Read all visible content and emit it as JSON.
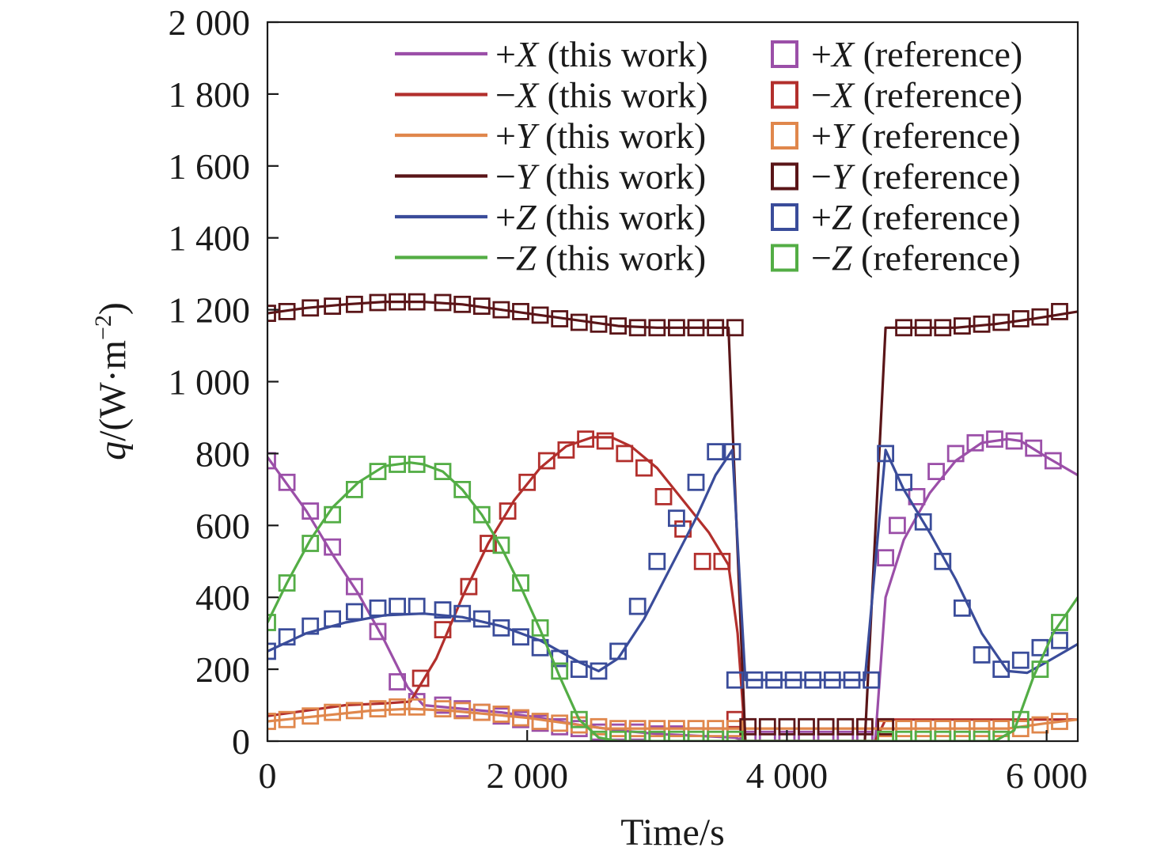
{
  "chart_data": {
    "type": "line",
    "xlabel": "Time/s",
    "ylabel_main": "q",
    "ylabel_unit": "/(W·m",
    "ylabel_exp": "−2",
    "ylabel_close": ")",
    "xlim": [
      0,
      6240
    ],
    "ylim": [
      0,
      2000
    ],
    "grid": false,
    "legend_position": "top-right",
    "x_ticks": [
      0,
      2000,
      4000,
      6000
    ],
    "x_tick_labels": [
      "0",
      "2 000",
      "4 000",
      "6 000"
    ],
    "y_ticks": [
      0,
      200,
      400,
      600,
      800,
      1000,
      1200,
      1400,
      1600,
      1800,
      2000
    ],
    "y_tick_labels": [
      "0",
      "200",
      "400",
      "600",
      "800",
      "1 000",
      "1 200",
      "1 400",
      "1 600",
      "1 800",
      "2 000"
    ],
    "series": [
      {
        "key": "px",
        "name_line": "+X (this work)",
        "name_ref": "+X (reference)",
        "color": "#9b4fa8",
        "line_x": [
          0,
          300,
          500,
          700,
          900,
          1080,
          1200,
          1500,
          1800,
          2100,
          2400,
          2700,
          3000,
          3300,
          3600,
          3680,
          4000,
          4600,
          4680,
          4760,
          4900,
          5100,
          5300,
          5500,
          5700,
          5800,
          6000,
          6240
        ],
        "line_y": [
          790,
          640,
          520,
          410,
          280,
          150,
          100,
          90,
          80,
          65,
          45,
          30,
          20,
          15,
          10,
          0,
          0,
          0,
          0,
          400,
          560,
          690,
          780,
          830,
          840,
          835,
          790,
          740
        ],
        "ref_x": [
          0,
          150,
          330,
          500,
          670,
          850,
          1000,
          1150,
          1350,
          1500,
          1650,
          1800,
          1950,
          2100,
          2250,
          2400,
          2550,
          2700,
          2850,
          3000,
          3150,
          3300,
          3450,
          3600,
          3700,
          3850,
          4000,
          4150,
          4300,
          4450,
          4600,
          4760,
          4850,
          5000,
          5150,
          5300,
          5450,
          5600,
          5750,
          5900,
          6050
        ],
        "ref_y": [
          780,
          720,
          640,
          540,
          430,
          305,
          165,
          110,
          100,
          90,
          80,
          70,
          60,
          50,
          40,
          35,
          25,
          25,
          25,
          20,
          20,
          15,
          15,
          15,
          5,
          5,
          5,
          5,
          5,
          5,
          5,
          510,
          600,
          680,
          750,
          800,
          830,
          840,
          835,
          815,
          780
        ]
      },
      {
        "key": "mx",
        "name_line": "−X (this work)",
        "name_ref": "−X (reference)",
        "color": "#b22f2c",
        "line_x": [
          0,
          300,
          600,
          900,
          1100,
          1300,
          1500,
          1700,
          1900,
          2100,
          2300,
          2500,
          2650,
          2800,
          3000,
          3200,
          3400,
          3550,
          3620,
          3680,
          4000,
          4600,
          4680,
          4760,
          5000,
          5500,
          6000,
          6240
        ],
        "line_y": [
          70,
          85,
          100,
          105,
          110,
          230,
          400,
          550,
          670,
          760,
          820,
          845,
          845,
          820,
          760,
          670,
          580,
          490,
          300,
          0,
          0,
          0,
          0,
          60,
          60,
          60,
          60,
          60
        ],
        "ref_x": [
          1180,
          1350,
          1550,
          1700,
          1850,
          2000,
          2150,
          2300,
          2450,
          2600,
          2750,
          2900,
          3050,
          3200,
          3350,
          3500,
          3600
        ],
        "ref_y": [
          175,
          310,
          430,
          550,
          640,
          720,
          780,
          810,
          840,
          835,
          800,
          760,
          680,
          590,
          500,
          500,
          60
        ]
      },
      {
        "key": "py",
        "name_line": "+Y (this work)",
        "name_ref": "+Y (reference)",
        "color": "#e0874c",
        "line_x": [
          0,
          400,
          800,
          1100,
          1400,
          1700,
          2000,
          2300,
          2600,
          3000,
          3500,
          3680,
          4000,
          4600,
          4760,
          5200,
          5700,
          6000,
          6240
        ],
        "line_y": [
          55,
          70,
          85,
          90,
          85,
          75,
          65,
          50,
          35,
          35,
          35,
          35,
          35,
          35,
          35,
          35,
          35,
          50,
          60
        ],
        "ref_x": [
          0,
          150,
          330,
          500,
          670,
          850,
          1000,
          1150,
          1350,
          1500,
          1650,
          1800,
          1950,
          2100,
          2250,
          2400,
          2550,
          2700,
          2850,
          3000,
          3150,
          3300,
          3450,
          3600,
          4760,
          4900,
          5050,
          5200,
          5350,
          5500,
          5650,
          5800,
          5950,
          6100
        ],
        "ref_y": [
          55,
          60,
          70,
          80,
          85,
          90,
          95,
          95,
          90,
          85,
          80,
          75,
          65,
          55,
          50,
          45,
          40,
          35,
          35,
          35,
          35,
          35,
          35,
          35,
          35,
          35,
          35,
          35,
          35,
          35,
          35,
          35,
          45,
          55
        ]
      },
      {
        "key": "my",
        "name_line": "−Y (this work)",
        "name_ref": "−Y (reference)",
        "color": "#5a1518",
        "line_x": [
          0,
          300,
          600,
          900,
          1200,
          1500,
          1800,
          2100,
          2400,
          2700,
          3000,
          3300,
          3550,
          3680,
          4000,
          4600,
          4760,
          5000,
          5300,
          5600,
          5900,
          6240
        ],
        "line_y": [
          1190,
          1205,
          1215,
          1222,
          1222,
          1215,
          1200,
          1185,
          1170,
          1155,
          1150,
          1150,
          1150,
          0,
          0,
          0,
          1150,
          1150,
          1150,
          1160,
          1175,
          1195
        ],
        "ref_x": [
          0,
          150,
          330,
          500,
          670,
          850,
          1000,
          1150,
          1350,
          1500,
          1650,
          1800,
          1950,
          2100,
          2250,
          2400,
          2550,
          2700,
          2850,
          3000,
          3150,
          3300,
          3450,
          3600,
          3700,
          3850,
          4000,
          4150,
          4300,
          4450,
          4600,
          4760,
          4900,
          5050,
          5200,
          5350,
          5500,
          5650,
          5800,
          5950,
          6100
        ],
        "ref_y": [
          1190,
          1195,
          1205,
          1210,
          1215,
          1220,
          1222,
          1222,
          1220,
          1215,
          1210,
          1200,
          1195,
          1185,
          1175,
          1165,
          1160,
          1155,
          1150,
          1150,
          1150,
          1150,
          1150,
          1150,
          40,
          40,
          40,
          40,
          40,
          40,
          40,
          40,
          1150,
          1150,
          1150,
          1155,
          1160,
          1165,
          1175,
          1180,
          1195
        ]
      },
      {
        "key": "pz",
        "name_line": "+Z (this work)",
        "name_ref": "+Z (reference)",
        "color": "#3a4c9a",
        "line_x": [
          0,
          300,
          600,
          900,
          1200,
          1500,
          1800,
          2100,
          2400,
          2550,
          2700,
          2900,
          3100,
          3300,
          3450,
          3580,
          3680,
          4000,
          4600,
          4760,
          4900,
          5100,
          5300,
          5500,
          5700,
          5850,
          6000,
          6240
        ],
        "line_y": [
          250,
          300,
          330,
          350,
          355,
          345,
          320,
          280,
          220,
          195,
          230,
          340,
          480,
          620,
          740,
          810,
          170,
          170,
          170,
          810,
          700,
          580,
          450,
          300,
          195,
          190,
          220,
          270
        ],
        "ref_x": [
          0,
          150,
          330,
          500,
          670,
          850,
          1000,
          1150,
          1350,
          1500,
          1650,
          1800,
          1950,
          2100,
          2250,
          2400,
          2550,
          2700,
          2850,
          3000,
          3150,
          3300,
          3450,
          3580,
          3600,
          3750,
          3900,
          4050,
          4200,
          4350,
          4500,
          4650,
          4760,
          4900,
          5050,
          5200,
          5350,
          5500,
          5650,
          5800,
          5950,
          6100
        ],
        "ref_y": [
          250,
          290,
          320,
          340,
          360,
          370,
          375,
          375,
          365,
          355,
          340,
          315,
          290,
          260,
          230,
          200,
          195,
          250,
          375,
          500,
          620,
          720,
          805,
          805,
          170,
          170,
          170,
          170,
          170,
          170,
          170,
          170,
          800,
          720,
          610,
          500,
          370,
          240,
          200,
          225,
          260,
          280
        ]
      },
      {
        "key": "mz",
        "name_line": "−Z (this work)",
        "name_ref": "−Z (reference)",
        "color": "#53ad45",
        "line_x": [
          0,
          150,
          330,
          500,
          700,
          900,
          1100,
          1200,
          1350,
          1500,
          1650,
          1800,
          1950,
          2100,
          2250,
          2400,
          2550,
          2700,
          3000,
          4000,
          5600,
          5750,
          5900,
          6050,
          6240
        ],
        "line_y": [
          330,
          440,
          560,
          650,
          720,
          765,
          775,
          770,
          750,
          700,
          630,
          540,
          430,
          310,
          180,
          60,
          10,
          0,
          0,
          0,
          0,
          30,
          180,
          300,
          400
        ],
        "ref_x": [
          0,
          150,
          330,
          500,
          670,
          850,
          1000,
          1150,
          1350,
          1500,
          1650,
          1800,
          1950,
          2100,
          2250,
          2400,
          2550,
          2700,
          2850,
          3000,
          3150,
          3300,
          3450,
          3600,
          4760,
          4900,
          5050,
          5200,
          5350,
          5500,
          5650,
          5800,
          5950,
          6100
        ],
        "ref_y": [
          330,
          440,
          550,
          630,
          700,
          750,
          770,
          770,
          750,
          700,
          630,
          545,
          440,
          315,
          195,
          60,
          5,
          5,
          5,
          5,
          5,
          5,
          5,
          5,
          5,
          5,
          5,
          5,
          5,
          5,
          5,
          60,
          200,
          330
        ]
      }
    ]
  }
}
